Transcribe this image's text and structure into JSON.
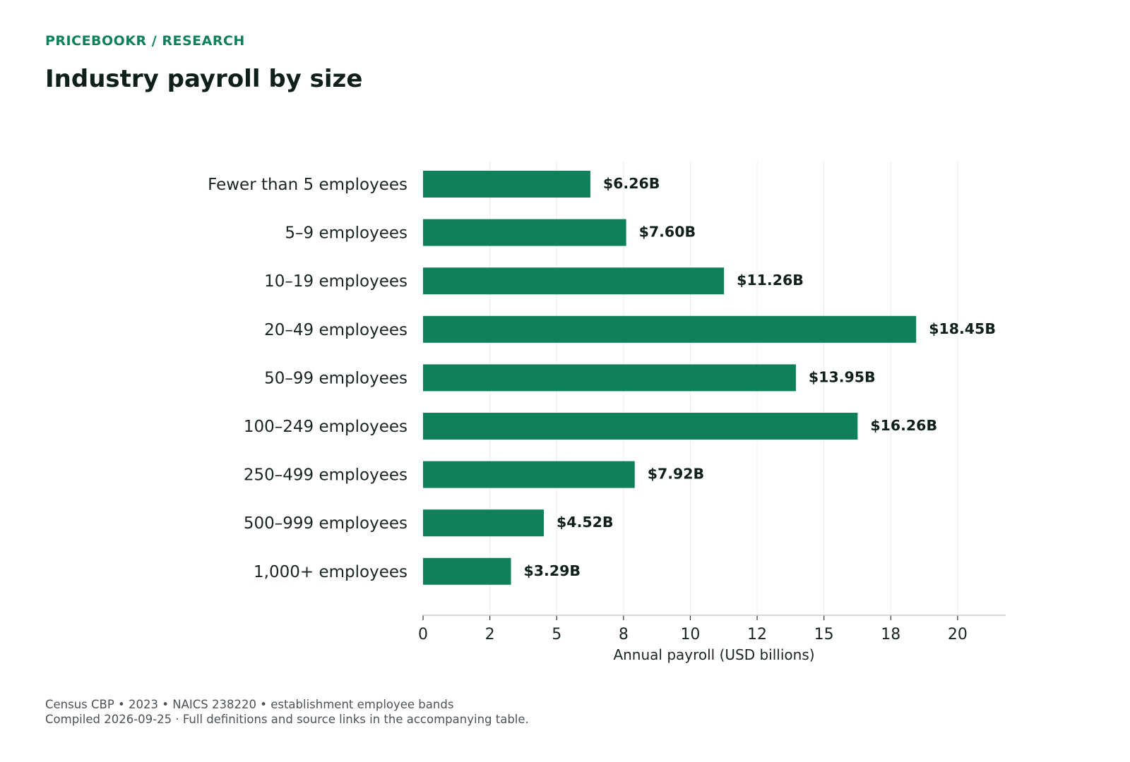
{
  "header": {
    "eyebrow": "PRICEBOOKR / RESEARCH",
    "title": "Industry payroll by size"
  },
  "chart_data": {
    "type": "bar",
    "orientation": "horizontal",
    "categories": [
      "Fewer than 5 employees",
      "5–9 employees",
      "10–19 employees",
      "20–49 employees",
      "50–99 employees",
      "100–249 employees",
      "250–499 employees",
      "500–999 employees",
      "1,000+ employees"
    ],
    "values": [
      6.26,
      7.6,
      11.26,
      18.45,
      13.95,
      16.26,
      7.92,
      4.52,
      3.29
    ],
    "data_labels": [
      "$6.26B",
      "$7.60B",
      "$11.26B",
      "$18.45B",
      "$13.95B",
      "$16.26B",
      "$7.92B",
      "$4.52B",
      "$3.29B"
    ],
    "xlabel": "Annual payroll (USD billions)",
    "xlim": [
      0,
      21.8
    ],
    "xticks": [
      0,
      2.5,
      5,
      7.5,
      10,
      12.5,
      15,
      17.5,
      20
    ],
    "xtick_labels": [
      "0",
      "2",
      "5",
      "8",
      "10",
      "12",
      "15",
      "18",
      "20"
    ],
    "grid": "vertical",
    "bar_color": "#0f8159"
  },
  "footer": {
    "line1": "Census CBP • 2023 • NAICS 238220 • establishment employee bands",
    "line2": "Compiled 2026-09-25 · Full definitions and source links in the accompanying table."
  }
}
